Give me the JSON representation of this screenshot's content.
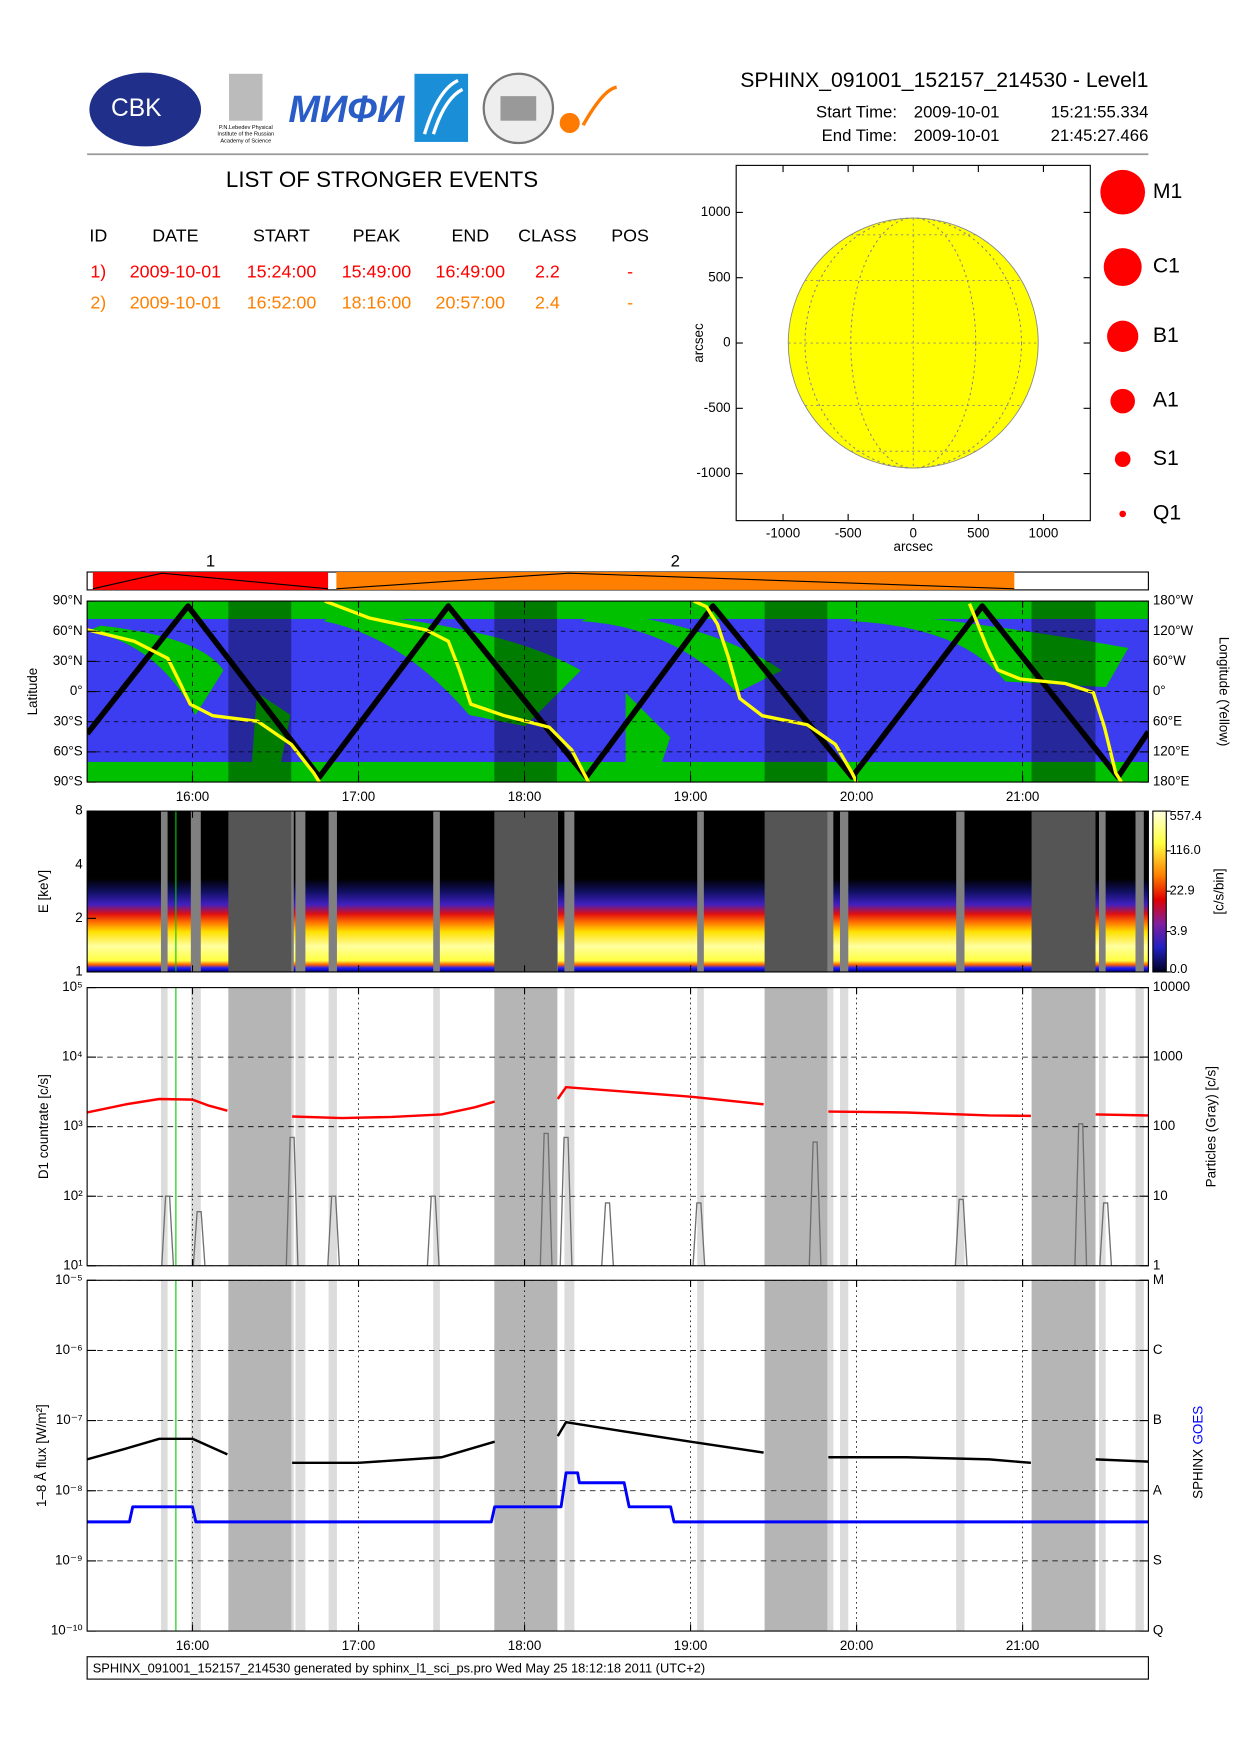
{
  "header": {
    "title": "SPHINX_091001_152157_214530 - Level1",
    "start_label": "Start Time:",
    "start_date": "2009-10-01",
    "start_time": "15:21:55.334",
    "end_label": "End Time:",
    "end_date": "2009-10-01",
    "end_time": "21:45:27.466"
  },
  "logos": {
    "cbk": "CBK",
    "mephi": "МИФИ",
    "lebedev": [
      "P.N.Lebedev Physical",
      "Institute of the Russian",
      "Academy of Science"
    ]
  },
  "events": {
    "title": "LIST OF STRONGER EVENTS",
    "columns": [
      "ID",
      "DATE",
      "START",
      "PEAK",
      "END",
      "CLASS",
      "POS"
    ],
    "rows": [
      {
        "color": "#ff0000",
        "cells": [
          "1)",
          "2009-10-01",
          "15:24:00",
          "15:49:00",
          "16:49:00",
          "2.2",
          "-"
        ]
      },
      {
        "color": "#ff8000",
        "cells": [
          "2)",
          "2009-10-01",
          "16:52:00",
          "18:16:00",
          "20:57:00",
          "2.4",
          "-"
        ]
      }
    ]
  },
  "event_bar": {
    "labels": [
      "1",
      "2"
    ]
  },
  "footer": "SPHINX_091001_152157_214530 generated by sphinx_l1_sci_ps.pro Wed May 25 18:12:18 2011 (UTC+2)",
  "chart_data": [
    {
      "type": "disk",
      "xlabel": "arcsec",
      "ylabel": "arcsec",
      "xlim": [
        -1360,
        1360
      ],
      "ylim": [
        -1360,
        1360
      ],
      "xticks": [
        -1000,
        -500,
        0,
        500,
        1000
      ],
      "yticks": [
        -1000,
        -500,
        0,
        500,
        1000
      ],
      "radius": 960,
      "color": "#ffff00",
      "legend": {
        "labels": [
          "M1",
          "C1",
          "B1",
          "A1",
          "S1",
          "Q1"
        ],
        "color": "#ff0000"
      }
    },
    {
      "type": "orbit",
      "ylabel": "Latitude",
      "y2label": "Longitude (Yellow)",
      "xlim": [
        15.36537,
        21.75763
      ],
      "xticks": [
        {
          "value": 16,
          "label": "16:00"
        },
        {
          "value": 17,
          "label": "17:00"
        },
        {
          "value": 18,
          "label": "18:00"
        },
        {
          "value": 19,
          "label": "19:00"
        },
        {
          "value": 20,
          "label": "20:00"
        },
        {
          "value": 21,
          "label": "21:00"
        }
      ],
      "ylim": [
        -90,
        90
      ],
      "yticks": [
        {
          "value": -90,
          "label": "90°S"
        },
        {
          "value": -60,
          "label": "60°S"
        },
        {
          "value": -30,
          "label": "30°S"
        },
        {
          "value": 0,
          "label": "0°"
        },
        {
          "value": 30,
          "label": "30°N"
        },
        {
          "value": 60,
          "label": "60°N"
        },
        {
          "value": 90,
          "label": "90°N"
        }
      ],
      "y2lim": [
        180,
        -180
      ],
      "y2ticks": [
        {
          "value": 180,
          "label": "180°E"
        },
        {
          "value": 120,
          "label": "120°E"
        },
        {
          "value": 60,
          "label": "60°E"
        },
        {
          "value": 0,
          "label": "0°"
        },
        {
          "value": -60,
          "label": "60°W"
        },
        {
          "value": -120,
          "label": "120°W"
        },
        {
          "value": -180,
          "label": "180°W"
        }
      ],
      "grid": true,
      "series": [
        {
          "color": "#000000",
          "x": [
            15.3654,
            15.973,
            16.764,
            17.541,
            18.372,
            19.135,
            19.973,
            20.757,
            21.574,
            21.7576
          ],
          "values": [
            -42,
            85,
            -85,
            85,
            -85,
            85,
            -85,
            85,
            -85,
            -40
          ]
        },
        {
          "color": "#ffff00",
          "axis": "y2",
          "x": [
            15.3654,
            15.649,
            15.851,
            15.919,
            15.986,
            16.122,
            16.392,
            16.595,
            16.73,
            16.764,
            null,
            16.797,
            17.068,
            17.405,
            17.541,
            17.608,
            17.676,
            17.878,
            18.149,
            18.284,
            18.385,
            null,
            19.02,
            19.095,
            19.162,
            19.23,
            19.297,
            19.432,
            19.703,
            19.872,
            19.973,
            20.0,
            null,
            20.68,
            20.784,
            20.851,
            20.986,
            21.257,
            21.426,
            21.493,
            21.561,
            21.595
          ],
          "values": [
            -123,
            -100,
            -66,
            -21,
            25,
            48,
            59,
            105,
            162,
            180,
            null,
            -180,
            -146,
            -123,
            -100,
            -43,
            25,
            48,
            71,
            116,
            180,
            null,
            -180,
            -169,
            -134,
            -66,
            14,
            48,
            66,
            105,
            162,
            180,
            null,
            -175,
            -89,
            -43,
            -25,
            -16,
            2,
            71,
            162,
            180
          ]
        }
      ]
    },
    {
      "type": "spectrogram",
      "ylabel": "E [keV]",
      "log": true,
      "ylim": [
        1,
        8
      ],
      "yticks": [
        1,
        2,
        4,
        8
      ],
      "colorbar": {
        "label": "[c/s/bin]",
        "lim": [
          0,
          557.4
        ],
        "ticks": [
          {
            "value": 0,
            "label": "0.0"
          },
          3.9,
          22.9,
          {
            "value": 116,
            "label": "116.0"
          },
          557.4
        ]
      }
    },
    {
      "type": "line",
      "ylabel": "D1 countrate [c/s]",
      "y2label": "Particles (Gray) [c/s]",
      "log": true,
      "grid": true,
      "ylim": [
        10,
        100000
      ],
      "yticks": [
        {
          "value": 10,
          "label": "10¹"
        },
        {
          "value": 100,
          "label": "10²"
        },
        {
          "value": 1000,
          "label": "10³"
        },
        {
          "value": 10000,
          "label": "10⁴"
        },
        {
          "value": 100000,
          "label": "10⁵"
        }
      ],
      "y2lim": [
        1,
        10000
      ],
      "y2ticks": [
        1,
        10,
        100,
        1000,
        10000
      ],
      "dark_intervals": [
        [
          16.216,
          16.595
        ],
        [
          17.818,
          18.196
        ],
        [
          19.446,
          19.824
        ],
        [
          21.054,
          21.439
        ]
      ],
      "light_intervals": [
        [
          15.81,
          15.85
        ],
        [
          15.99,
          16.05
        ],
        [
          16.56,
          16.61
        ],
        [
          16.62,
          16.68
        ],
        [
          16.82,
          16.87
        ],
        [
          17.45,
          17.49
        ],
        [
          18.12,
          18.2
        ],
        [
          18.24,
          18.3
        ],
        [
          19.04,
          19.08
        ],
        [
          19.72,
          19.76
        ],
        [
          19.82,
          19.86
        ],
        [
          19.9,
          19.95
        ],
        [
          20.6,
          20.65
        ],
        [
          21.3,
          21.42
        ],
        [
          21.46,
          21.5
        ],
        [
          21.68,
          21.73
        ]
      ],
      "marker": {
        "x": 15.9,
        "color": "#00cc00"
      },
      "series": [
        {
          "color": "#ff0000",
          "x": [
            15.3654,
            15.6,
            15.8,
            16.0,
            16.1,
            16.21,
            null,
            16.6,
            16.9,
            17.2,
            17.5,
            17.7,
            17.82,
            null,
            18.2,
            18.25,
            18.6,
            19.0,
            19.44,
            null,
            19.83,
            20.3,
            20.8,
            21.05,
            null,
            21.44,
            21.7576
          ],
          "values": [
            1600,
            2100,
            2500,
            2450,
            2000,
            1700,
            null,
            1400,
            1330,
            1380,
            1500,
            1900,
            2300,
            null,
            2500,
            3700,
            3200,
            2700,
            2100,
            null,
            1650,
            1600,
            1450,
            1430,
            null,
            1500,
            1450
          ]
        },
        {
          "color": "#707070",
          "axis": "y2",
          "style": "spikes",
          "x": [
            15.85,
            16.04,
            16.6,
            16.85,
            17.45,
            18.13,
            18.25,
            18.5,
            19.05,
            19.75,
            20.63,
            21.35,
            21.5
          ],
          "values": [
            10,
            6,
            70,
            10,
            10,
            80,
            70,
            8,
            8,
            60,
            9,
            110,
            8
          ]
        }
      ]
    },
    {
      "type": "line",
      "ylabel": "1–8 Å flux [W/m²]",
      "log": true,
      "grid": true,
      "xlim": [
        15.36537,
        21.75763
      ],
      "xticks": [
        {
          "value": 16,
          "label": "16:00"
        },
        {
          "value": 17,
          "label": "17:00"
        },
        {
          "value": 18,
          "label": "18:00"
        },
        {
          "value": 19,
          "label": "19:00"
        },
        {
          "value": 20,
          "label": "20:00"
        },
        {
          "value": 21,
          "label": "21:00"
        }
      ],
      "ylim": [
        1e-10,
        1e-05
      ],
      "yticks": [
        {
          "value": 1e-10,
          "label": "10⁻¹⁰"
        },
        {
          "value": 1e-09,
          "label": "10⁻⁹"
        },
        {
          "value": 1e-08,
          "label": "10⁻⁸"
        },
        {
          "value": 1e-07,
          "label": "10⁻⁷"
        },
        {
          "value": 1e-06,
          "label": "10⁻⁶"
        },
        {
          "value": 1e-05,
          "label": "10⁻⁵"
        }
      ],
      "y2lim": [
        1e-10,
        1e-05
      ],
      "y2ticks": [
        {
          "value": 1e-10,
          "label": "Q"
        },
        {
          "value": 1e-09,
          "label": "S"
        },
        {
          "value": 1e-08,
          "label": "A"
        },
        {
          "value": 1e-07,
          "label": "B"
        },
        {
          "value": 1e-06,
          "label": "C"
        },
        {
          "value": 1e-05,
          "label": "M"
        }
      ],
      "series": [
        {
          "name": "SPHINX",
          "color": "#000000",
          "x": [
            15.3654,
            15.6,
            15.8,
            16.0,
            16.21,
            null,
            16.6,
            17.0,
            17.5,
            17.82,
            null,
            18.2,
            18.25,
            18.6,
            19.0,
            19.44,
            null,
            19.83,
            20.3,
            20.8,
            21.05,
            null,
            21.44,
            21.7576
          ],
          "values": [
            2.8e-08,
            4e-08,
            5.5e-08,
            5.5e-08,
            3.3e-08,
            null,
            2.5e-08,
            2.5e-08,
            3e-08,
            5e-08,
            null,
            6e-08,
            9.5e-08,
            7e-08,
            5e-08,
            3.5e-08,
            null,
            3e-08,
            3e-08,
            2.8e-08,
            2.5e-08,
            null,
            2.8e-08,
            2.6e-08
          ]
        },
        {
          "name": "GOES",
          "color": "#0000ff",
          "x": [
            15.3654,
            15.62,
            15.64,
            16.0,
            16.02,
            17.8,
            17.82,
            18.22,
            18.25,
            18.32,
            18.33,
            18.6,
            18.63,
            18.88,
            18.9,
            21.7576
          ],
          "values": [
            3.6e-09,
            3.6e-09,
            5.9e-09,
            5.9e-09,
            3.6e-09,
            3.6e-09,
            5.9e-09,
            5.9e-09,
            1.8e-08,
            1.8e-08,
            1.3e-08,
            1.3e-08,
            5.9e-09,
            5.9e-09,
            3.6e-09,
            3.6e-09
          ]
        }
      ]
    }
  ]
}
